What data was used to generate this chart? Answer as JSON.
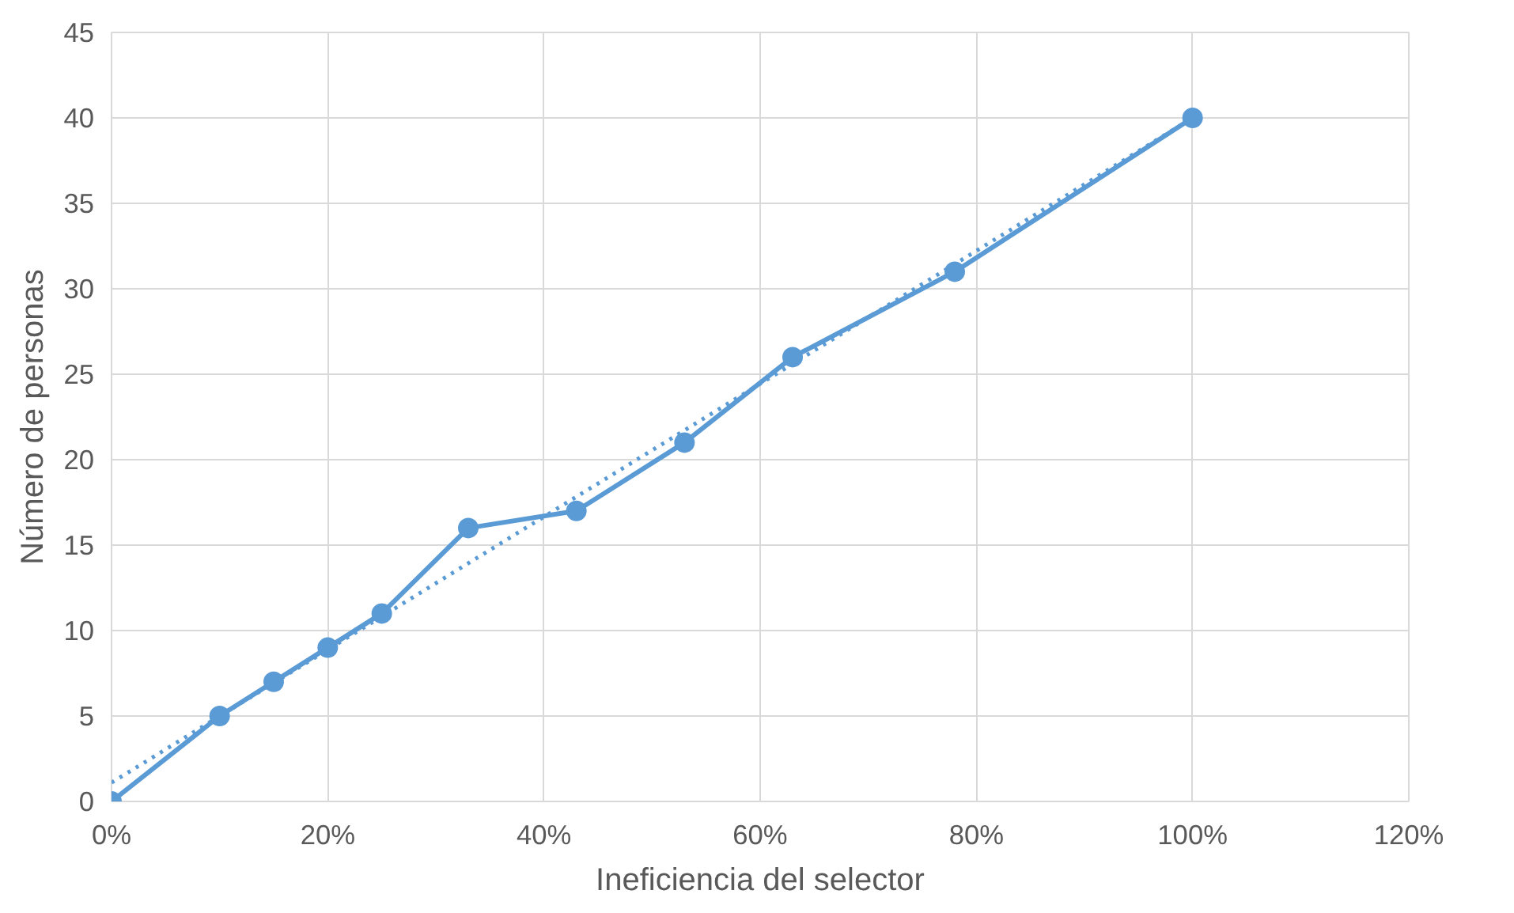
{
  "chart_data": {
    "type": "line",
    "xlabel": "Ineficiencia del selector",
    "ylabel": "Número de personas",
    "x": [
      0,
      10,
      15,
      20,
      25,
      33,
      43,
      53,
      63,
      78,
      100
    ],
    "series": [
      {
        "color": "#5b9bd5",
        "values": [
          0,
          5,
          7,
          9,
          11,
          16,
          17,
          21,
          26,
          31,
          40
        ],
        "marker": "circle",
        "line_style": "solid"
      },
      {
        "type": "line",
        "color": "#5b9bd5",
        "x": [
          0,
          100
        ],
        "values": [
          1.1,
          40
        ],
        "marker": "none",
        "line_style": "dotted"
      }
    ],
    "xlim": [
      0,
      120
    ],
    "xticks": [
      {
        "value": 0,
        "label": "0%"
      },
      {
        "value": 20,
        "label": "20%"
      },
      {
        "value": 40,
        "label": "40%"
      },
      {
        "value": 60,
        "label": "60%"
      },
      {
        "value": 80,
        "label": "80%"
      },
      {
        "value": 100,
        "label": "100%"
      },
      {
        "value": 120,
        "label": "120%"
      }
    ],
    "ylim": [
      0,
      45
    ],
    "yticks": [
      0,
      5,
      10,
      15,
      20,
      25,
      30,
      35,
      40,
      45
    ],
    "grid": true
  }
}
